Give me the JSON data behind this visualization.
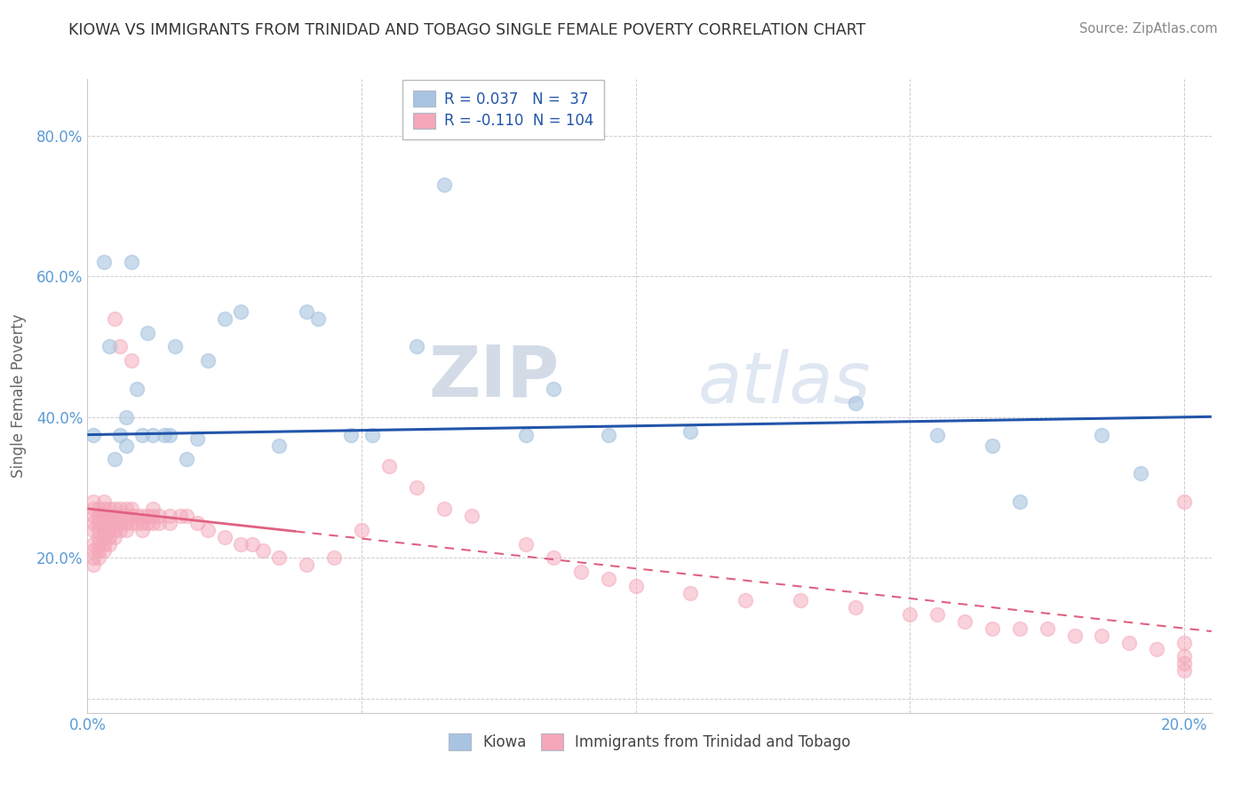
{
  "title": "KIOWA VS IMMIGRANTS FROM TRINIDAD AND TOBAGO SINGLE FEMALE POVERTY CORRELATION CHART",
  "source": "Source: ZipAtlas.com",
  "ylabel": "Single Female Poverty",
  "r_kiowa": 0.037,
  "n_kiowa": 37,
  "r_immigrants": -0.11,
  "n_immigrants": 104,
  "kiowa_color": "#a8c4e0",
  "immigrants_color": "#f4a7b9",
  "kiowa_line_color": "#2255aa",
  "immigrants_line_color": "#e06080",
  "legend_label_kiowa": "Kiowa",
  "legend_label_immigrants": "Immigrants from Trinidad and Tobago",
  "watermark_zip": "ZIP",
  "watermark_atlas": "atlas",
  "xlim": [
    0.0,
    0.205
  ],
  "ylim": [
    -0.02,
    0.88
  ],
  "x_ticks": [
    0.0,
    0.05,
    0.1,
    0.15,
    0.2
  ],
  "x_tick_labels": [
    "0.0%",
    "",
    "",
    "",
    "20.0%"
  ],
  "y_ticks": [
    0.0,
    0.2,
    0.4,
    0.6,
    0.8
  ],
  "y_tick_labels": [
    "",
    "20.0%",
    "40.0%",
    "60.0%",
    "80.0%"
  ],
  "kiowa_x": [
    0.001,
    0.003,
    0.004,
    0.005,
    0.006,
    0.007,
    0.007,
    0.008,
    0.009,
    0.01,
    0.011,
    0.012,
    0.014,
    0.015,
    0.016,
    0.018,
    0.02,
    0.022,
    0.025,
    0.028,
    0.035,
    0.04,
    0.042,
    0.048,
    0.052,
    0.06,
    0.065,
    0.08,
    0.085,
    0.095,
    0.11,
    0.14,
    0.155,
    0.165,
    0.17,
    0.185,
    0.192
  ],
  "kiowa_y": [
    0.375,
    0.62,
    0.5,
    0.34,
    0.375,
    0.36,
    0.4,
    0.62,
    0.44,
    0.375,
    0.52,
    0.375,
    0.375,
    0.375,
    0.5,
    0.34,
    0.37,
    0.48,
    0.54,
    0.55,
    0.36,
    0.55,
    0.54,
    0.375,
    0.375,
    0.5,
    0.73,
    0.375,
    0.44,
    0.375,
    0.38,
    0.42,
    0.375,
    0.36,
    0.28,
    0.375,
    0.32
  ],
  "immigrants_x_dense": [
    0.001,
    0.001,
    0.001,
    0.001,
    0.001,
    0.001,
    0.001,
    0.001,
    0.001,
    0.002,
    0.002,
    0.002,
    0.002,
    0.002,
    0.002,
    0.002,
    0.002,
    0.003,
    0.003,
    0.003,
    0.003,
    0.003,
    0.003,
    0.003,
    0.003,
    0.004,
    0.004,
    0.004,
    0.004,
    0.004,
    0.004,
    0.005,
    0.005,
    0.005,
    0.005,
    0.005,
    0.006,
    0.006,
    0.006,
    0.006,
    0.007,
    0.007,
    0.007,
    0.007,
    0.008,
    0.008,
    0.008,
    0.009,
    0.009,
    0.01,
    0.01,
    0.01,
    0.011,
    0.011,
    0.012,
    0.012,
    0.012,
    0.013,
    0.013,
    0.015,
    0.015,
    0.017,
    0.018,
    0.02,
    0.022,
    0.025,
    0.028,
    0.03,
    0.032,
    0.035
  ],
  "immigrants_y_dense": [
    0.27,
    0.28,
    0.26,
    0.25,
    0.24,
    0.22,
    0.21,
    0.2,
    0.19,
    0.27,
    0.26,
    0.25,
    0.24,
    0.23,
    0.22,
    0.21,
    0.2,
    0.28,
    0.27,
    0.26,
    0.25,
    0.24,
    0.23,
    0.22,
    0.21,
    0.27,
    0.26,
    0.25,
    0.24,
    0.23,
    0.22,
    0.27,
    0.26,
    0.25,
    0.24,
    0.23,
    0.27,
    0.26,
    0.25,
    0.24,
    0.27,
    0.26,
    0.25,
    0.24,
    0.27,
    0.26,
    0.25,
    0.26,
    0.25,
    0.26,
    0.25,
    0.24,
    0.26,
    0.25,
    0.27,
    0.26,
    0.25,
    0.26,
    0.25,
    0.26,
    0.25,
    0.26,
    0.26,
    0.25,
    0.24,
    0.23,
    0.22,
    0.22,
    0.21,
    0.2
  ],
  "immigrants_x_sparse": [
    0.04,
    0.045,
    0.05,
    0.055,
    0.06,
    0.065,
    0.07,
    0.08,
    0.085,
    0.09,
    0.095,
    0.1,
    0.11,
    0.12,
    0.13,
    0.14,
    0.15,
    0.155,
    0.16,
    0.165,
    0.17,
    0.175,
    0.18,
    0.185,
    0.19,
    0.195,
    0.2,
    0.2,
    0.2,
    0.2,
    0.2,
    0.005,
    0.006,
    0.008
  ],
  "immigrants_y_sparse": [
    0.19,
    0.2,
    0.24,
    0.33,
    0.3,
    0.27,
    0.26,
    0.22,
    0.2,
    0.18,
    0.17,
    0.16,
    0.15,
    0.14,
    0.14,
    0.13,
    0.12,
    0.12,
    0.11,
    0.1,
    0.1,
    0.1,
    0.09,
    0.09,
    0.08,
    0.07,
    0.28,
    0.08,
    0.06,
    0.05,
    0.04,
    0.54,
    0.5,
    0.48
  ],
  "solid_cutoff": 0.038,
  "title_fontsize": 12.5,
  "source_fontsize": 10.5,
  "tick_fontsize": 12,
  "ylabel_fontsize": 12,
  "legend_fontsize": 12,
  "marker_size": 130
}
